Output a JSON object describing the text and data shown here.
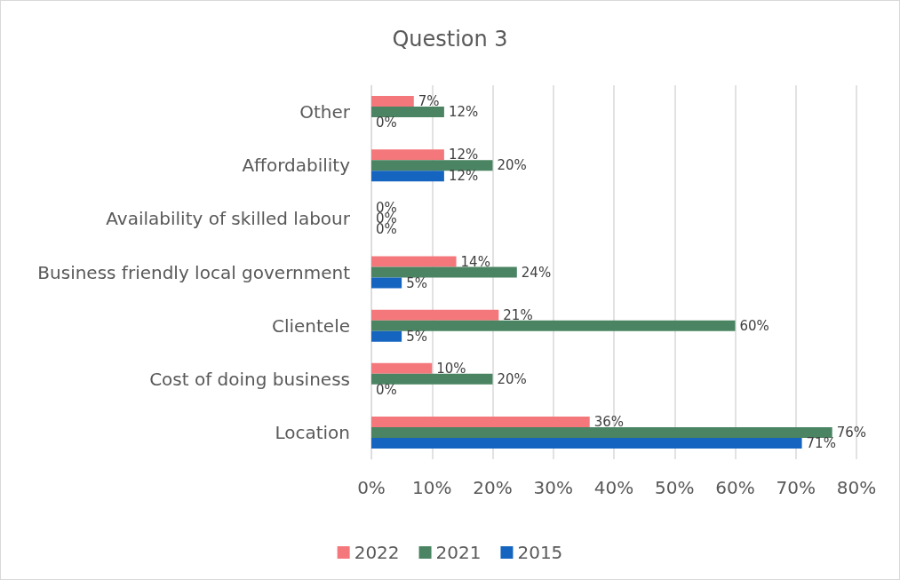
{
  "chart_data": {
    "type": "bar",
    "title": "Question 3",
    "orientation": "horizontal",
    "categories": [
      "Other",
      "Affordability",
      "Availability of skilled labour",
      "Business friendly local government",
      "Clientele",
      "Cost of doing business",
      "Location"
    ],
    "series": [
      {
        "name": "2022",
        "color": "#f4777b",
        "values": [
          7,
          12,
          0,
          14,
          21,
          10,
          36
        ],
        "value_labels": [
          "7%",
          "12%",
          "0%",
          "14%",
          "21%",
          "10%",
          "36%"
        ]
      },
      {
        "name": "2021",
        "color": "#4a8462",
        "values": [
          12,
          20,
          0,
          24,
          60,
          20,
          76
        ],
        "value_labels": [
          "12%",
          "20%",
          "0%",
          "24%",
          "60%",
          "20%",
          "76%"
        ]
      },
      {
        "name": "2015",
        "color": "#1565c0",
        "values": [
          0,
          12,
          0,
          5,
          5,
          0,
          71
        ],
        "value_labels": [
          "0%",
          "12%",
          "0%",
          "5%",
          "5%",
          "0%",
          "71%"
        ]
      }
    ],
    "xlim": [
      0,
      80
    ],
    "xticks": [
      {
        "value": 0,
        "label": "0%"
      },
      {
        "value": 10,
        "label": "10%"
      },
      {
        "value": 20,
        "label": "20%"
      },
      {
        "value": 30,
        "label": "30%"
      },
      {
        "value": 40,
        "label": "40%"
      },
      {
        "value": 50,
        "label": "50%"
      },
      {
        "value": 60,
        "label": "60%"
      },
      {
        "value": 70,
        "label": "70%"
      },
      {
        "value": 80,
        "label": "80%"
      }
    ],
    "grid": "x",
    "legend": "bottom"
  }
}
